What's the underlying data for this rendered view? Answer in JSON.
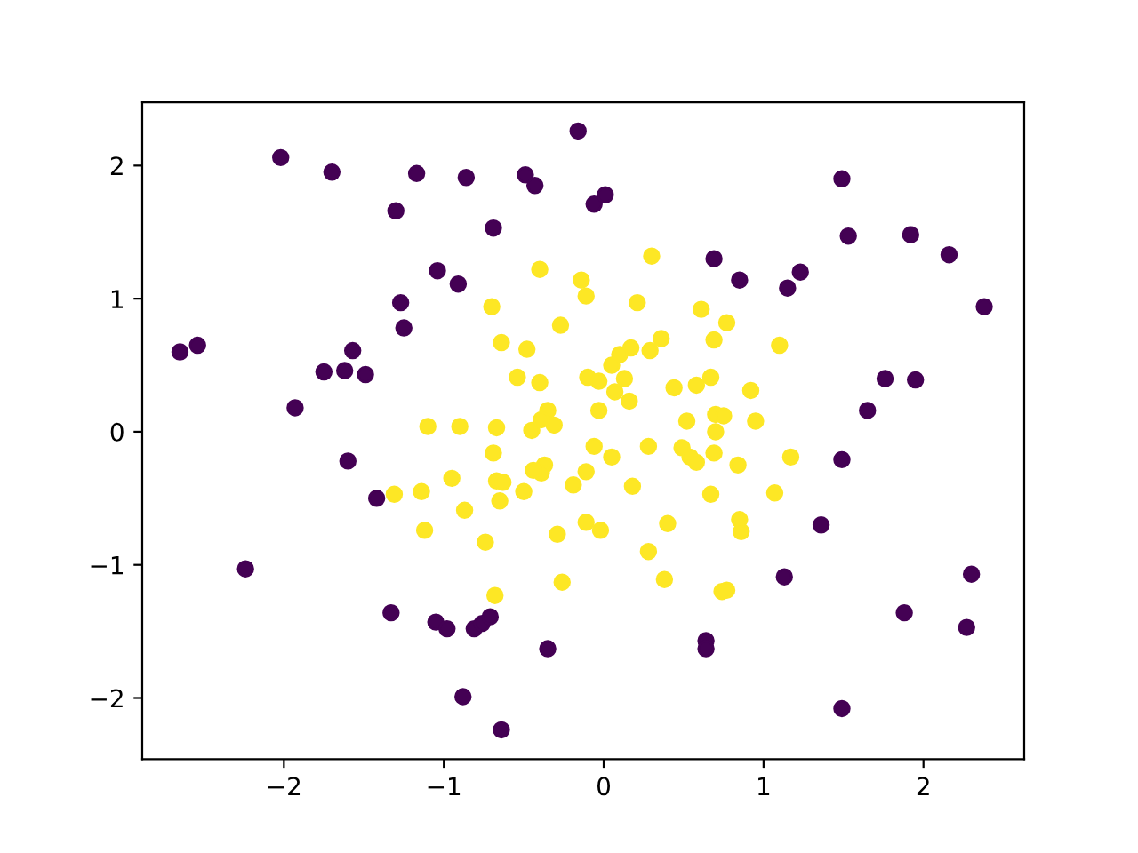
{
  "chart_data": {
    "type": "scatter",
    "marker": "circle",
    "grid": false,
    "legend": false,
    "xlim": [
      -2.886,
      2.63
    ],
    "ylim": [
      -2.46,
      2.475
    ],
    "xticks": [
      {
        "value": -2,
        "label": "−2"
      },
      {
        "value": -1,
        "label": "−1"
      },
      0,
      1,
      2
    ],
    "yticks": [
      {
        "value": -2,
        "label": "−2"
      },
      {
        "value": -1,
        "label": "−1"
      },
      0,
      1,
      2
    ],
    "series": [
      {
        "color": "#440154",
        "x": [
          -0.16,
          -2.02,
          -1.7,
          -1.17,
          -0.86,
          -0.49,
          -0.43,
          -1.3,
          -0.69,
          -0.06,
          0.01,
          -1.04,
          -0.91,
          -1.27,
          -1.25,
          -2.65,
          -2.54,
          -1.57,
          -1.75,
          -1.62,
          -1.49,
          -1.93,
          1.49,
          1.53,
          1.92,
          2.16,
          2.38,
          0.69,
          0.85,
          1.23,
          1.15,
          1.76,
          1.95,
          1.65,
          -1.6,
          -1.42,
          -2.24,
          -1.33,
          -1.05,
          -0.98,
          -0.81,
          -0.76,
          -0.71,
          -0.35,
          -0.88,
          -0.64,
          1.49,
          1.36,
          1.13,
          2.3,
          1.88,
          2.27,
          0.64,
          0.64,
          1.49
        ],
        "values": [
          2.26,
          2.06,
          1.95,
          1.94,
          1.91,
          1.93,
          1.85,
          1.66,
          1.53,
          1.71,
          1.78,
          1.21,
          1.11,
          0.97,
          0.78,
          0.6,
          0.65,
          0.61,
          0.45,
          0.46,
          0.43,
          0.18,
          1.9,
          1.47,
          1.48,
          1.33,
          0.94,
          1.3,
          1.14,
          1.2,
          1.08,
          0.4,
          0.39,
          0.16,
          -0.22,
          -0.5,
          -1.03,
          -1.36,
          -1.43,
          -1.48,
          -1.48,
          -1.44,
          -1.39,
          -1.63,
          -1.99,
          -2.24,
          -0.21,
          -0.7,
          -1.09,
          -1.07,
          -1.36,
          -1.47,
          -1.57,
          -1.63,
          -2.08
        ]
      },
      {
        "color": "#fde725",
        "x": [
          -0.4,
          -0.14,
          -0.11,
          -0.7,
          -0.27,
          -0.64,
          -0.48,
          -0.54,
          -0.4,
          -0.1,
          -0.03,
          -0.03,
          -1.1,
          -0.9,
          -0.67,
          -0.45,
          -0.35,
          -0.31,
          -0.39,
          0.3,
          0.21,
          0.61,
          0.77,
          0.69,
          0.36,
          0.17,
          0.1,
          0.29,
          0.05,
          1.1,
          0.13,
          0.07,
          0.16,
          0.44,
          0.58,
          0.67,
          0.92,
          0.52,
          0.7,
          0.75,
          0.95,
          0.7,
          -0.06,
          0.05,
          0.28,
          0.49,
          0.54,
          0.58,
          0.69,
          0.84,
          1.17,
          -0.11,
          0.18,
          0.67,
          1.07,
          -0.11,
          -0.02,
          0.4,
          0.85,
          0.86,
          0.28,
          0.38,
          0.74,
          0.77,
          -0.69,
          -0.37,
          -0.39,
          -0.44,
          -0.19,
          -0.95,
          -0.67,
          -0.63,
          -0.65,
          -0.5,
          -1.31,
          -1.14,
          -0.87,
          -1.12,
          -0.74,
          -0.29,
          -0.26,
          -0.68
        ],
        "values": [
          1.22,
          1.14,
          1.02,
          0.94,
          0.8,
          0.67,
          0.62,
          0.41,
          0.37,
          0.41,
          0.38,
          0.16,
          0.04,
          0.04,
          0.03,
          0.01,
          0.16,
          0.05,
          0.09,
          1.32,
          0.97,
          0.92,
          0.82,
          0.69,
          0.7,
          0.63,
          0.58,
          0.61,
          0.5,
          0.65,
          0.4,
          0.3,
          0.23,
          0.33,
          0.35,
          0.41,
          0.31,
          0.08,
          0.13,
          0.12,
          0.08,
          0.0,
          -0.11,
          -0.19,
          -0.11,
          -0.12,
          -0.19,
          -0.23,
          -0.16,
          -0.25,
          -0.19,
          -0.3,
          -0.41,
          -0.47,
          -0.46,
          -0.68,
          -0.74,
          -0.69,
          -0.66,
          -0.75,
          -0.9,
          -1.11,
          -1.2,
          -1.19,
          -0.16,
          -0.25,
          -0.31,
          -0.29,
          -0.4,
          -0.35,
          -0.37,
          -0.38,
          -0.52,
          -0.45,
          -0.47,
          -0.45,
          -0.59,
          -0.74,
          -0.83,
          -0.77,
          -1.13,
          -1.23
        ]
      }
    ]
  }
}
